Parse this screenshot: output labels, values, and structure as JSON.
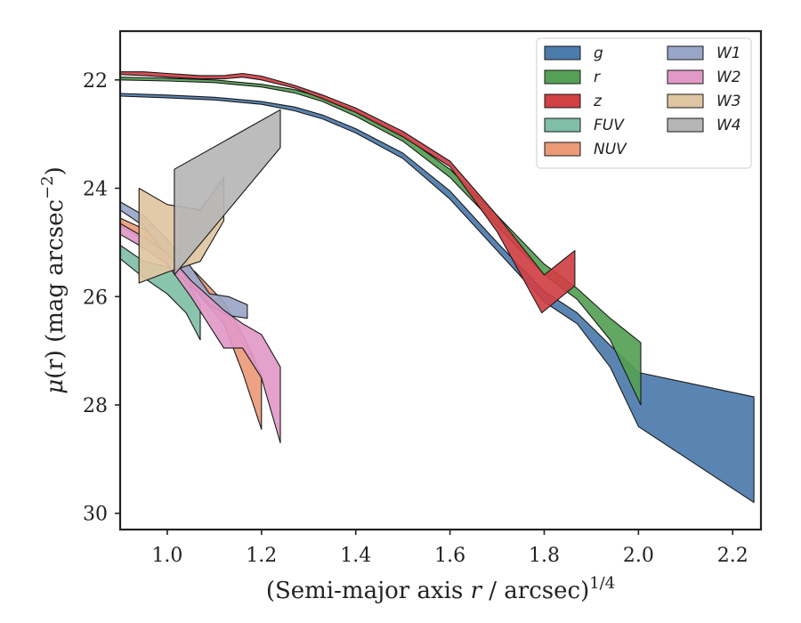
{
  "chart_data": {
    "type": "area",
    "xlabel": "(Semi-major axis",
    "xlabel_var": "r",
    "xlabel_unit": "/ arcsec)",
    "xlabel_sup": "1/4",
    "ylabel_mu": "μ",
    "ylabel_rest": "(r) (mag arcsec",
    "ylabel_sup": "−2",
    "ylabel_end": ")",
    "xlim": [
      0.9,
      2.26
    ],
    "ylim": [
      30.3,
      21.1
    ],
    "y_inverted": true,
    "xticks": [
      1.0,
      1.2,
      1.4,
      1.6,
      1.8,
      2.0,
      2.2
    ],
    "xtick_labels": [
      "1.0",
      "1.2",
      "1.4",
      "1.6",
      "1.8",
      "2.0",
      "2.2"
    ],
    "yticks": [
      22,
      24,
      26,
      28,
      30
    ],
    "ytick_labels": [
      "22",
      "24",
      "26",
      "28",
      "30"
    ],
    "grid": false,
    "legend_position": "top-right",
    "legend_columns": 2,
    "series": [
      {
        "name": "g",
        "color": "#4c7bab",
        "upper": [
          [
            0.9,
            22.25
          ],
          [
            1.0,
            22.28
          ],
          [
            1.1,
            22.32
          ],
          [
            1.2,
            22.4
          ],
          [
            1.27,
            22.5
          ],
          [
            1.33,
            22.65
          ],
          [
            1.4,
            22.9
          ],
          [
            1.5,
            23.35
          ],
          [
            1.6,
            24.05
          ],
          [
            1.7,
            25.0
          ],
          [
            1.8,
            25.9
          ],
          [
            1.87,
            26.3
          ],
          [
            1.94,
            26.9
          ],
          [
            2.0,
            27.4
          ],
          [
            2.245,
            27.85
          ]
        ],
        "lower": [
          [
            0.9,
            22.3
          ],
          [
            1.0,
            22.33
          ],
          [
            1.1,
            22.37
          ],
          [
            1.2,
            22.45
          ],
          [
            1.27,
            22.57
          ],
          [
            1.33,
            22.72
          ],
          [
            1.4,
            22.98
          ],
          [
            1.5,
            23.45
          ],
          [
            1.6,
            24.2
          ],
          [
            1.7,
            25.15
          ],
          [
            1.8,
            26.1
          ],
          [
            1.87,
            26.5
          ],
          [
            1.94,
            27.3
          ],
          [
            2.0,
            28.4
          ],
          [
            2.245,
            29.8
          ]
        ]
      },
      {
        "name": "r",
        "color": "#55a055",
        "upper": [
          [
            0.9,
            21.95
          ],
          [
            1.0,
            21.97
          ],
          [
            1.1,
            22.0
          ],
          [
            1.2,
            22.08
          ],
          [
            1.27,
            22.18
          ],
          [
            1.33,
            22.33
          ],
          [
            1.4,
            22.58
          ],
          [
            1.5,
            23.02
          ],
          [
            1.6,
            23.65
          ],
          [
            1.7,
            24.5
          ],
          [
            1.8,
            25.4
          ],
          [
            1.87,
            25.85
          ],
          [
            1.94,
            26.4
          ],
          [
            2.005,
            26.85
          ]
        ],
        "lower": [
          [
            0.9,
            22.0
          ],
          [
            1.0,
            22.02
          ],
          [
            1.1,
            22.05
          ],
          [
            1.2,
            22.13
          ],
          [
            1.27,
            22.24
          ],
          [
            1.33,
            22.4
          ],
          [
            1.4,
            22.67
          ],
          [
            1.5,
            23.13
          ],
          [
            1.6,
            23.8
          ],
          [
            1.7,
            24.7
          ],
          [
            1.8,
            25.6
          ],
          [
            1.87,
            26.05
          ],
          [
            1.94,
            26.8
          ],
          [
            2.005,
            28.0
          ]
        ]
      },
      {
        "name": "z",
        "color": "#d04045",
        "upper": [
          [
            0.9,
            21.85
          ],
          [
            0.95,
            21.85
          ],
          [
            1.0,
            21.88
          ],
          [
            1.07,
            21.92
          ],
          [
            1.12,
            21.92
          ],
          [
            1.16,
            21.88
          ],
          [
            1.2,
            21.93
          ],
          [
            1.27,
            22.1
          ],
          [
            1.33,
            22.28
          ],
          [
            1.4,
            22.52
          ],
          [
            1.5,
            22.95
          ],
          [
            1.6,
            23.5
          ],
          [
            1.7,
            24.5
          ],
          [
            1.8,
            25.6
          ],
          [
            1.865,
            25.15
          ]
        ],
        "lower": [
          [
            0.9,
            21.9
          ],
          [
            0.95,
            21.92
          ],
          [
            1.0,
            21.95
          ],
          [
            1.07,
            21.98
          ],
          [
            1.12,
            21.98
          ],
          [
            1.16,
            21.95
          ],
          [
            1.2,
            22.0
          ],
          [
            1.27,
            22.15
          ],
          [
            1.33,
            22.35
          ],
          [
            1.4,
            22.6
          ],
          [
            1.5,
            23.05
          ],
          [
            1.6,
            23.6
          ],
          [
            1.7,
            24.8
          ],
          [
            1.795,
            26.3
          ],
          [
            1.865,
            25.8
          ]
        ]
      },
      {
        "name": "FUV",
        "color": "#7fbfa6",
        "upper": [
          [
            0.9,
            25.05
          ],
          [
            0.95,
            25.35
          ],
          [
            1.0,
            25.45
          ],
          [
            1.04,
            25.7
          ],
          [
            1.07,
            26.15
          ]
        ],
        "lower": [
          [
            0.9,
            25.3
          ],
          [
            0.95,
            25.65
          ],
          [
            1.0,
            25.95
          ],
          [
            1.04,
            26.3
          ],
          [
            1.07,
            26.8
          ]
        ]
      },
      {
        "name": "NUV",
        "color": "#ec9a78",
        "upper": [
          [
            0.9,
            24.55
          ],
          [
            0.95,
            24.75
          ],
          [
            1.0,
            25.1
          ],
          [
            1.06,
            25.55
          ],
          [
            1.12,
            26.1
          ],
          [
            1.16,
            26.7
          ],
          [
            1.2,
            27.45
          ]
        ],
        "lower": [
          [
            0.9,
            24.7
          ],
          [
            0.95,
            24.95
          ],
          [
            1.0,
            25.4
          ],
          [
            1.06,
            25.9
          ],
          [
            1.12,
            26.5
          ],
          [
            1.16,
            27.4
          ],
          [
            1.2,
            28.45
          ]
        ]
      },
      {
        "name": "W1",
        "color": "#9aa6c8",
        "upper": [
          [
            0.9,
            24.25
          ],
          [
            0.95,
            24.5
          ],
          [
            1.0,
            24.95
          ],
          [
            1.05,
            25.45
          ],
          [
            1.09,
            25.95
          ],
          [
            1.13,
            26.0
          ],
          [
            1.17,
            26.15
          ]
        ],
        "lower": [
          [
            0.9,
            24.4
          ],
          [
            0.95,
            24.7
          ],
          [
            1.0,
            25.25
          ],
          [
            1.05,
            25.75
          ],
          [
            1.09,
            26.15
          ],
          [
            1.13,
            26.35
          ],
          [
            1.17,
            26.4
          ]
        ]
      },
      {
        "name": "W2",
        "color": "#e199c8",
        "upper": [
          [
            0.9,
            24.65
          ],
          [
            0.95,
            24.9
          ],
          [
            1.0,
            25.2
          ],
          [
            1.05,
            25.7
          ],
          [
            1.12,
            26.25
          ],
          [
            1.16,
            26.5
          ],
          [
            1.2,
            26.7
          ],
          [
            1.24,
            27.3
          ]
        ],
        "lower": [
          [
            0.9,
            24.85
          ],
          [
            0.95,
            25.1
          ],
          [
            1.0,
            25.4
          ],
          [
            1.05,
            26.0
          ],
          [
            1.12,
            26.95
          ],
          [
            1.16,
            26.95
          ],
          [
            1.2,
            27.5
          ],
          [
            1.24,
            28.7
          ]
        ]
      },
      {
        "name": "W3",
        "color": "#dfc6a2",
        "upper": [
          [
            0.94,
            24.0
          ],
          [
            1.0,
            24.3
          ],
          [
            1.07,
            24.4
          ],
          [
            1.12,
            23.8
          ]
        ],
        "lower": [
          [
            0.94,
            25.75
          ],
          [
            1.0,
            25.55
          ],
          [
            1.07,
            25.35
          ],
          [
            1.12,
            24.6
          ]
        ]
      },
      {
        "name": "W4",
        "color": "#b6b6b6",
        "upper": [
          [
            1.015,
            23.65
          ],
          [
            1.24,
            22.55
          ]
        ],
        "lower": [
          [
            1.015,
            25.6
          ],
          [
            1.24,
            23.25
          ]
        ]
      }
    ]
  }
}
